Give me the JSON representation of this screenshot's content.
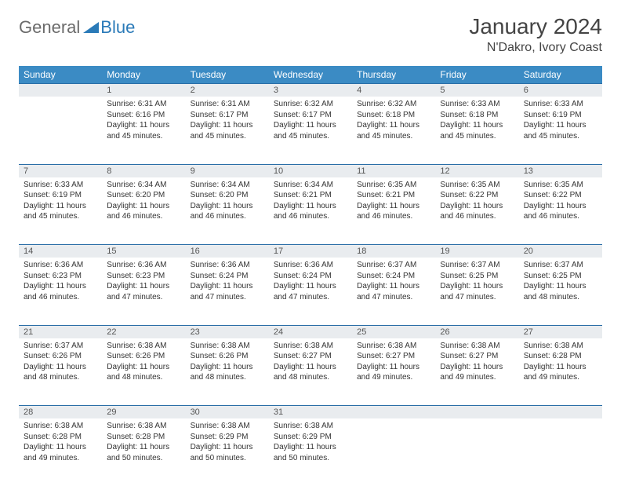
{
  "logo": {
    "general": "General",
    "blue": "Blue"
  },
  "title": "January 2024",
  "location": "N'Dakro, Ivory Coast",
  "colors": {
    "header_bg": "#3b8bc4",
    "header_text": "#ffffff",
    "daynum_bg": "#e9ecef",
    "border": "#2a6ea7",
    "logo_gray": "#6b6b6b",
    "logo_blue": "#2a7ab8"
  },
  "weekdays": [
    "Sunday",
    "Monday",
    "Tuesday",
    "Wednesday",
    "Thursday",
    "Friday",
    "Saturday"
  ],
  "weeks": [
    {
      "days": [
        null,
        {
          "num": "1",
          "sunrise": "Sunrise: 6:31 AM",
          "sunset": "Sunset: 6:16 PM",
          "day1": "Daylight: 11 hours",
          "day2": "and 45 minutes."
        },
        {
          "num": "2",
          "sunrise": "Sunrise: 6:31 AM",
          "sunset": "Sunset: 6:17 PM",
          "day1": "Daylight: 11 hours",
          "day2": "and 45 minutes."
        },
        {
          "num": "3",
          "sunrise": "Sunrise: 6:32 AM",
          "sunset": "Sunset: 6:17 PM",
          "day1": "Daylight: 11 hours",
          "day2": "and 45 minutes."
        },
        {
          "num": "4",
          "sunrise": "Sunrise: 6:32 AM",
          "sunset": "Sunset: 6:18 PM",
          "day1": "Daylight: 11 hours",
          "day2": "and 45 minutes."
        },
        {
          "num": "5",
          "sunrise": "Sunrise: 6:33 AM",
          "sunset": "Sunset: 6:18 PM",
          "day1": "Daylight: 11 hours",
          "day2": "and 45 minutes."
        },
        {
          "num": "6",
          "sunrise": "Sunrise: 6:33 AM",
          "sunset": "Sunset: 6:19 PM",
          "day1": "Daylight: 11 hours",
          "day2": "and 45 minutes."
        }
      ]
    },
    {
      "days": [
        {
          "num": "7",
          "sunrise": "Sunrise: 6:33 AM",
          "sunset": "Sunset: 6:19 PM",
          "day1": "Daylight: 11 hours",
          "day2": "and 45 minutes."
        },
        {
          "num": "8",
          "sunrise": "Sunrise: 6:34 AM",
          "sunset": "Sunset: 6:20 PM",
          "day1": "Daylight: 11 hours",
          "day2": "and 46 minutes."
        },
        {
          "num": "9",
          "sunrise": "Sunrise: 6:34 AM",
          "sunset": "Sunset: 6:20 PM",
          "day1": "Daylight: 11 hours",
          "day2": "and 46 minutes."
        },
        {
          "num": "10",
          "sunrise": "Sunrise: 6:34 AM",
          "sunset": "Sunset: 6:21 PM",
          "day1": "Daylight: 11 hours",
          "day2": "and 46 minutes."
        },
        {
          "num": "11",
          "sunrise": "Sunrise: 6:35 AM",
          "sunset": "Sunset: 6:21 PM",
          "day1": "Daylight: 11 hours",
          "day2": "and 46 minutes."
        },
        {
          "num": "12",
          "sunrise": "Sunrise: 6:35 AM",
          "sunset": "Sunset: 6:22 PM",
          "day1": "Daylight: 11 hours",
          "day2": "and 46 minutes."
        },
        {
          "num": "13",
          "sunrise": "Sunrise: 6:35 AM",
          "sunset": "Sunset: 6:22 PM",
          "day1": "Daylight: 11 hours",
          "day2": "and 46 minutes."
        }
      ]
    },
    {
      "days": [
        {
          "num": "14",
          "sunrise": "Sunrise: 6:36 AM",
          "sunset": "Sunset: 6:23 PM",
          "day1": "Daylight: 11 hours",
          "day2": "and 46 minutes."
        },
        {
          "num": "15",
          "sunrise": "Sunrise: 6:36 AM",
          "sunset": "Sunset: 6:23 PM",
          "day1": "Daylight: 11 hours",
          "day2": "and 47 minutes."
        },
        {
          "num": "16",
          "sunrise": "Sunrise: 6:36 AM",
          "sunset": "Sunset: 6:24 PM",
          "day1": "Daylight: 11 hours",
          "day2": "and 47 minutes."
        },
        {
          "num": "17",
          "sunrise": "Sunrise: 6:36 AM",
          "sunset": "Sunset: 6:24 PM",
          "day1": "Daylight: 11 hours",
          "day2": "and 47 minutes."
        },
        {
          "num": "18",
          "sunrise": "Sunrise: 6:37 AM",
          "sunset": "Sunset: 6:24 PM",
          "day1": "Daylight: 11 hours",
          "day2": "and 47 minutes."
        },
        {
          "num": "19",
          "sunrise": "Sunrise: 6:37 AM",
          "sunset": "Sunset: 6:25 PM",
          "day1": "Daylight: 11 hours",
          "day2": "and 47 minutes."
        },
        {
          "num": "20",
          "sunrise": "Sunrise: 6:37 AM",
          "sunset": "Sunset: 6:25 PM",
          "day1": "Daylight: 11 hours",
          "day2": "and 48 minutes."
        }
      ]
    },
    {
      "days": [
        {
          "num": "21",
          "sunrise": "Sunrise: 6:37 AM",
          "sunset": "Sunset: 6:26 PM",
          "day1": "Daylight: 11 hours",
          "day2": "and 48 minutes."
        },
        {
          "num": "22",
          "sunrise": "Sunrise: 6:38 AM",
          "sunset": "Sunset: 6:26 PM",
          "day1": "Daylight: 11 hours",
          "day2": "and 48 minutes."
        },
        {
          "num": "23",
          "sunrise": "Sunrise: 6:38 AM",
          "sunset": "Sunset: 6:26 PM",
          "day1": "Daylight: 11 hours",
          "day2": "and 48 minutes."
        },
        {
          "num": "24",
          "sunrise": "Sunrise: 6:38 AM",
          "sunset": "Sunset: 6:27 PM",
          "day1": "Daylight: 11 hours",
          "day2": "and 48 minutes."
        },
        {
          "num": "25",
          "sunrise": "Sunrise: 6:38 AM",
          "sunset": "Sunset: 6:27 PM",
          "day1": "Daylight: 11 hours",
          "day2": "and 49 minutes."
        },
        {
          "num": "26",
          "sunrise": "Sunrise: 6:38 AM",
          "sunset": "Sunset: 6:27 PM",
          "day1": "Daylight: 11 hours",
          "day2": "and 49 minutes."
        },
        {
          "num": "27",
          "sunrise": "Sunrise: 6:38 AM",
          "sunset": "Sunset: 6:28 PM",
          "day1": "Daylight: 11 hours",
          "day2": "and 49 minutes."
        }
      ]
    },
    {
      "days": [
        {
          "num": "28",
          "sunrise": "Sunrise: 6:38 AM",
          "sunset": "Sunset: 6:28 PM",
          "day1": "Daylight: 11 hours",
          "day2": "and 49 minutes."
        },
        {
          "num": "29",
          "sunrise": "Sunrise: 6:38 AM",
          "sunset": "Sunset: 6:28 PM",
          "day1": "Daylight: 11 hours",
          "day2": "and 50 minutes."
        },
        {
          "num": "30",
          "sunrise": "Sunrise: 6:38 AM",
          "sunset": "Sunset: 6:29 PM",
          "day1": "Daylight: 11 hours",
          "day2": "and 50 minutes."
        },
        {
          "num": "31",
          "sunrise": "Sunrise: 6:38 AM",
          "sunset": "Sunset: 6:29 PM",
          "day1": "Daylight: 11 hours",
          "day2": "and 50 minutes."
        },
        null,
        null,
        null
      ]
    }
  ]
}
